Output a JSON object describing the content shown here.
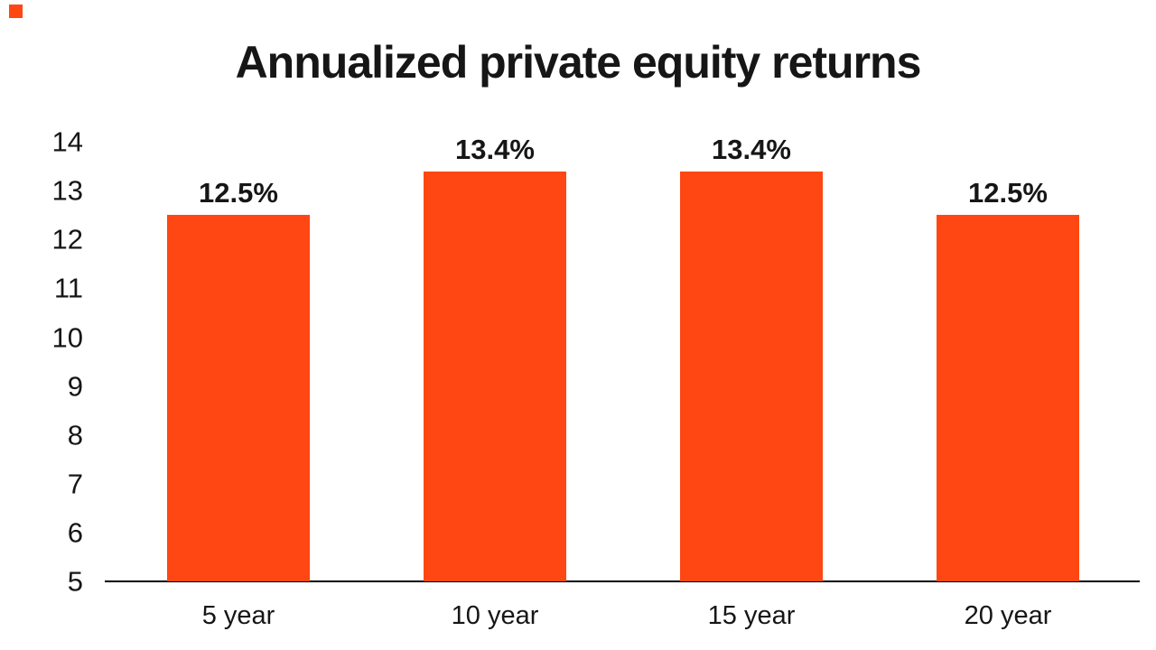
{
  "page": {
    "background_color": "#ffffff",
    "text_color": "#161616"
  },
  "accent": {
    "color": "#FF4713"
  },
  "chart_data": {
    "type": "bar",
    "title": "Annualized private equity returns",
    "categories": [
      "5 year",
      "10 year",
      "15 year",
      "20 year"
    ],
    "values": [
      12.5,
      13.4,
      13.4,
      12.5
    ],
    "value_labels": [
      "12.5%",
      "13.4%",
      "13.4%",
      "12.5%"
    ],
    "yticks": [
      5,
      6,
      7,
      8,
      9,
      10,
      11,
      12,
      13,
      14
    ],
    "ylim": [
      5,
      14
    ],
    "xlabel": "",
    "ylabel": "",
    "bar_color": "#FF4713",
    "axis_color": "#000000",
    "grid": false,
    "legend": "none"
  }
}
